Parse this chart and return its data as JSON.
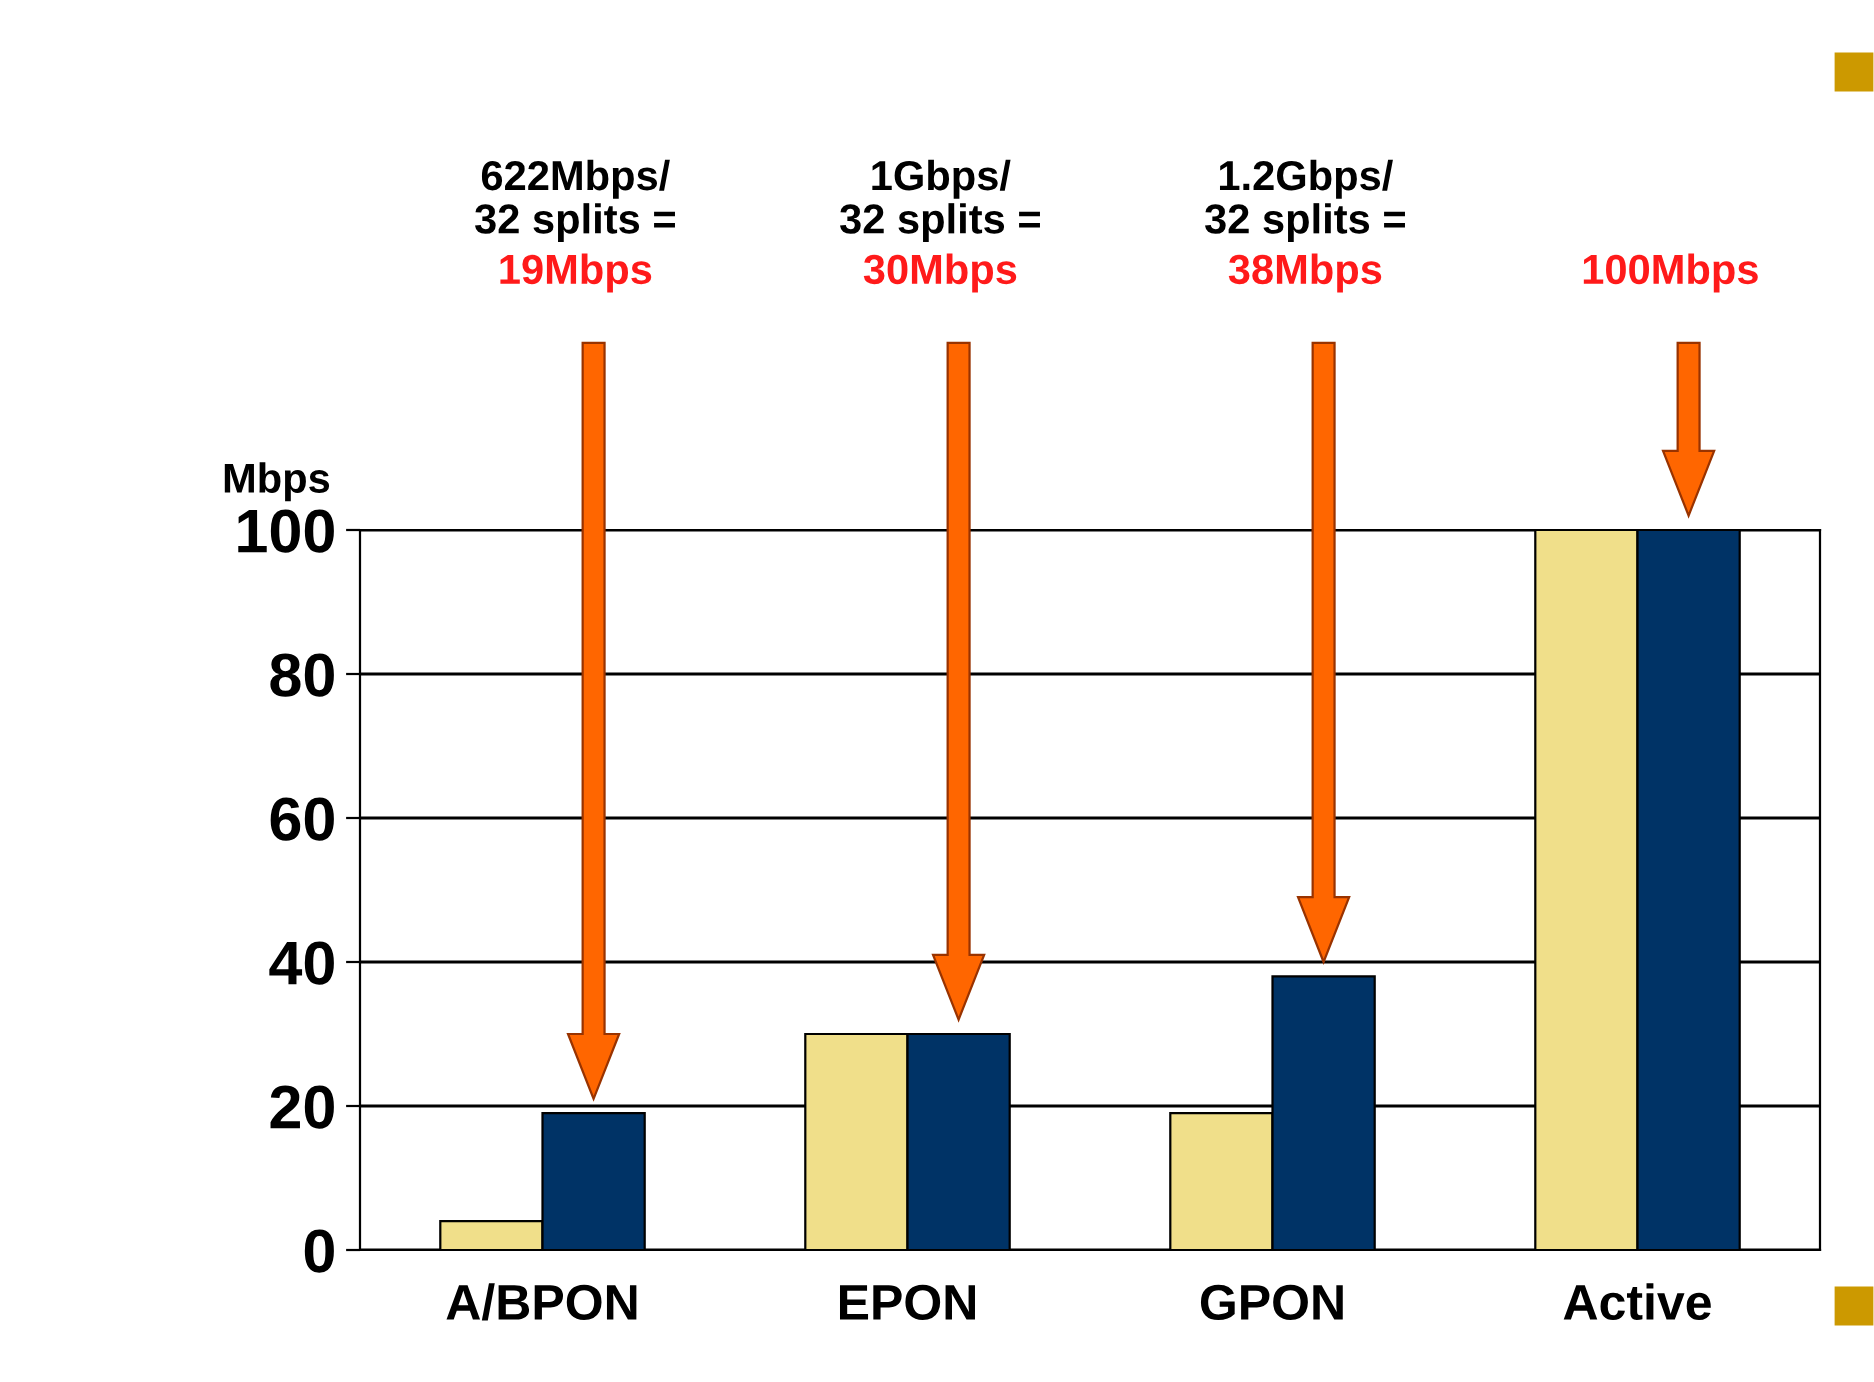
{
  "chart_data": {
    "type": "bar",
    "ylabel": "Mbps",
    "categories": [
      "A/BPON",
      "EPON",
      "GPON",
      "Active"
    ],
    "series": [
      {
        "color": "#f0df8a",
        "values": [
          4,
          30,
          19,
          100
        ]
      },
      {
        "color": "#003366",
        "values": [
          19,
          30,
          38,
          100
        ]
      }
    ],
    "ylim": [
      0,
      100
    ],
    "yticks": [
      0,
      20,
      40,
      60,
      80,
      100
    ],
    "grid": "y",
    "legend": false,
    "annotations": [
      "622Mbps/\n32 splits =",
      "19Mbps",
      "1Gbps/\n32 splits =",
      "30Mbps",
      "1.2Gbps/\n32 splits =",
      "38Mbps",
      "100Mbps"
    ]
  }
}
